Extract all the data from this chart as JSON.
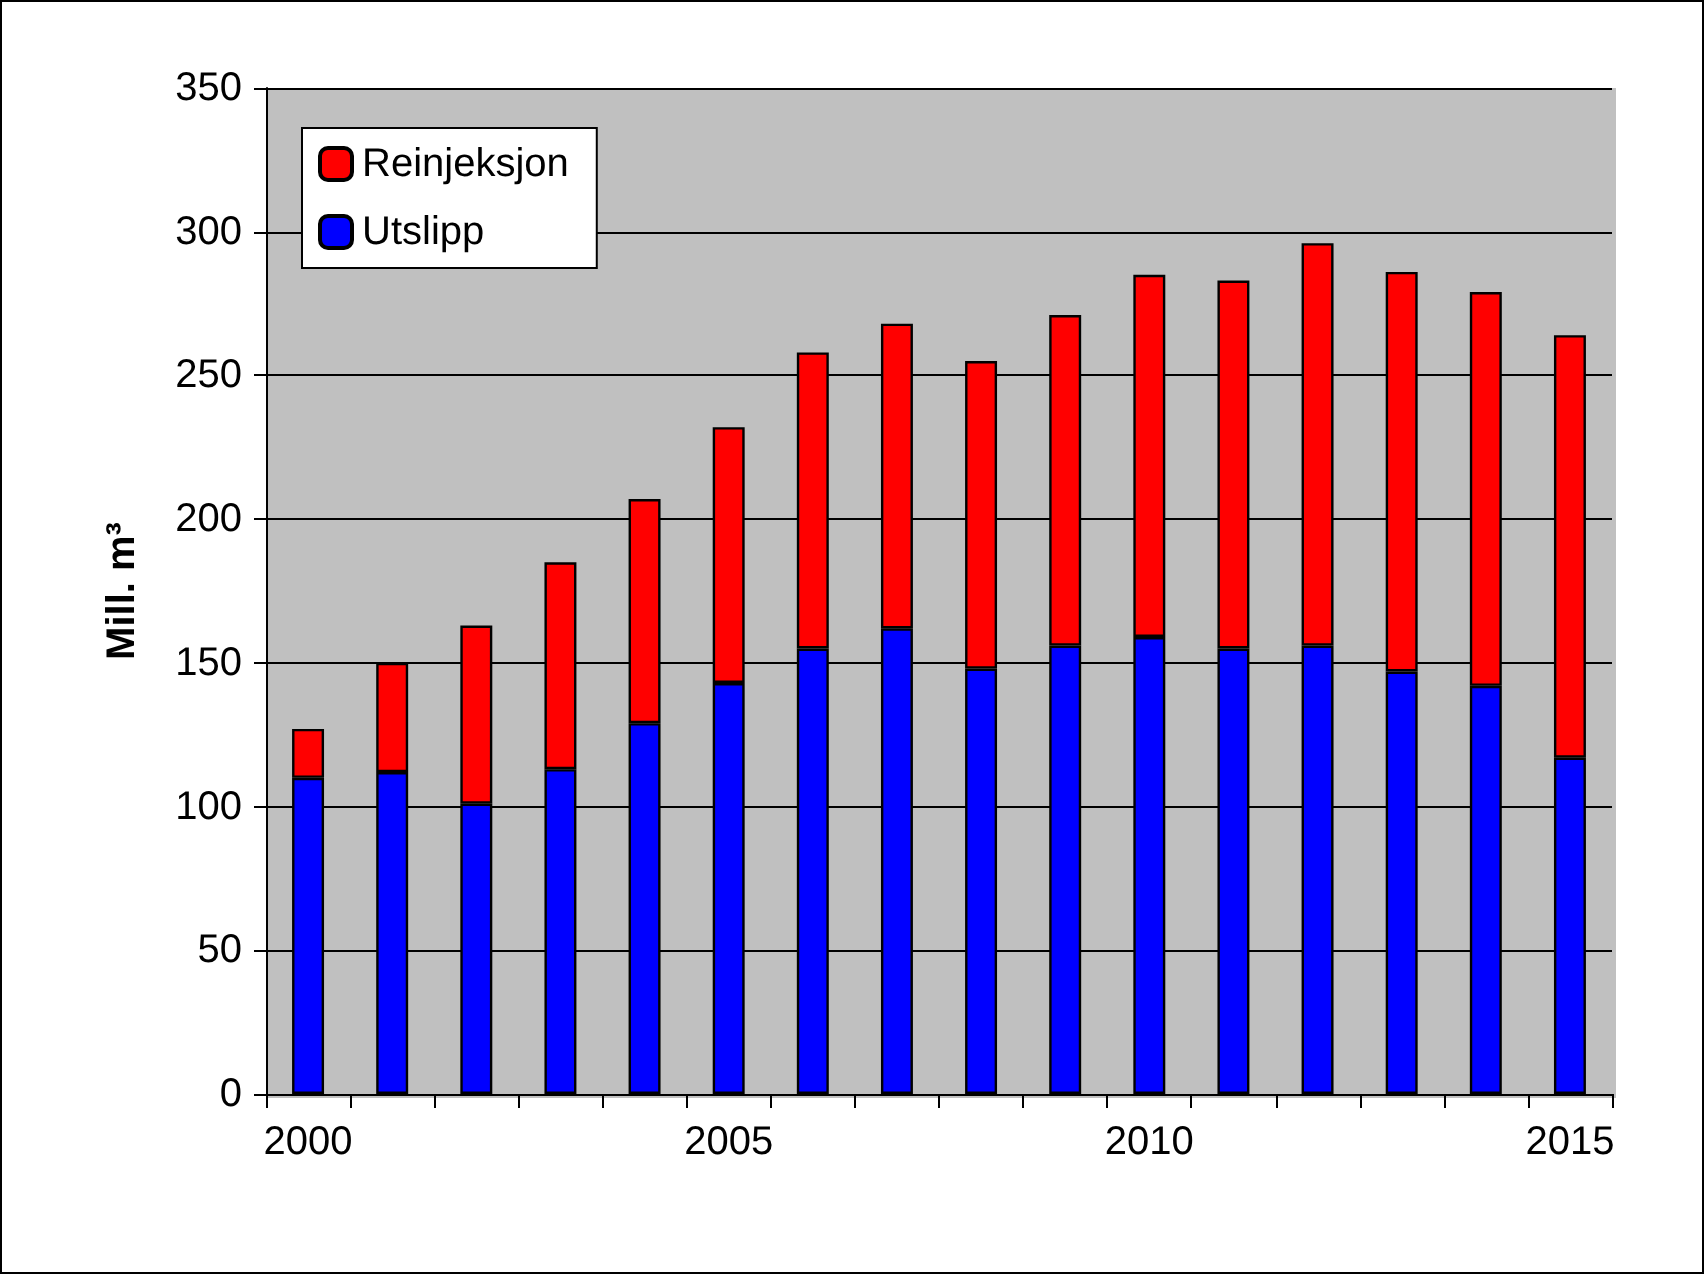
{
  "chart_data": {
    "type": "bar",
    "ylabel": "Mill. m³",
    "categories": [
      "2000",
      null,
      null,
      null,
      null,
      "2005",
      null,
      null,
      null,
      null,
      "2010",
      null,
      null,
      null,
      null,
      "2015"
    ],
    "series": [
      {
        "name": "Utslipp",
        "color": "#0000ff",
        "values": [
          110,
          112,
          101,
          113,
          129,
          143,
          155,
          162,
          148,
          156,
          159,
          155,
          156,
          147,
          142,
          117
        ]
      },
      {
        "name": "Reinjeksjon",
        "color": "#ff0000",
        "values": [
          17,
          38,
          62,
          72,
          78,
          89,
          103,
          106,
          107,
          115,
          126,
          128,
          140,
          139,
          137,
          147
        ]
      }
    ],
    "stacked": true,
    "ylim": [
      0,
      350
    ],
    "yticks": [
      0,
      50,
      100,
      150,
      200,
      250,
      300,
      350
    ],
    "grid": "y",
    "legend": "top left"
  }
}
